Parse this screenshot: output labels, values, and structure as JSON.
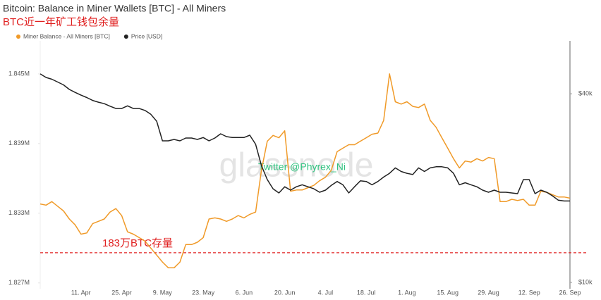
{
  "chart_data": {
    "type": "line",
    "title": "Bitcoin: Balance in Miner Wallets [BTC] - All Miners",
    "subtitle": "BTC近一年矿工钱包余量",
    "categories": [
      null,
      null,
      null,
      null,
      null,
      null,
      null,
      "11. Apr",
      null,
      null,
      null,
      null,
      null,
      null,
      "25. Apr",
      null,
      null,
      null,
      null,
      null,
      null,
      "9. May",
      null,
      null,
      null,
      null,
      null,
      null,
      "23. May",
      null,
      null,
      null,
      null,
      null,
      null,
      "6. Jun",
      null,
      null,
      null,
      null,
      null,
      null,
      "20. Jun",
      null,
      null,
      null,
      null,
      null,
      null,
      "4. Jul",
      null,
      null,
      null,
      null,
      null,
      null,
      "18. Jul",
      null,
      null,
      null,
      null,
      null,
      null,
      "1. Aug",
      null,
      null,
      null,
      null,
      null,
      null,
      "15. Aug",
      null,
      null,
      null,
      null,
      null,
      null,
      "29. Aug",
      null,
      null,
      null,
      null,
      null,
      null,
      "12. Sep",
      null,
      null,
      null,
      null,
      null,
      null,
      "26. Sep"
    ],
    "series": [
      {
        "name": "Miner Balance - All Miners [BTC]",
        "color": "#f09a28",
        "axis": "y",
        "values": [
          1833800,
          1833700,
          1834000,
          1833600,
          1833200,
          1832500,
          1832000,
          1831200,
          1831300,
          1832100,
          1832300,
          1832500,
          1833100,
          1833400,
          1832800,
          1831400,
          1831200,
          1830900,
          1830600,
          1830000,
          1829400,
          1828800,
          1828300,
          1828300,
          1828800,
          1830300,
          1830300,
          1830500,
          1830900,
          1832500,
          1832600,
          1832500,
          1832300,
          1832500,
          1832800,
          1832600,
          1832900,
          1833100,
          1836700,
          1839200,
          1839700,
          1839500,
          1840100,
          1834900,
          1835000,
          1835000,
          1835200,
          1835400,
          1835800,
          1836100,
          1836700,
          1838300,
          1838600,
          1838900,
          1838900,
          1839200,
          1839500,
          1839800,
          1839900,
          1841000,
          1845000,
          1842600,
          1842400,
          1842600,
          1842200,
          1842100,
          1842400,
          1841000,
          1840400,
          1839500,
          1838600,
          1837700,
          1836900,
          1837500,
          1837400,
          1837700,
          1837500,
          1837800,
          1837700,
          1834000,
          1834000,
          1834200,
          1834100,
          1834200,
          1833700,
          1833700,
          1834900,
          1834800,
          1834600,
          1834400,
          1834400,
          1834300
        ]
      },
      {
        "name": "Price [USD]",
        "color": "#222222",
        "axis": "y2",
        "values": [
          46300,
          45100,
          44500,
          43600,
          42700,
          41300,
          40400,
          39600,
          38900,
          38100,
          37600,
          37200,
          36500,
          35900,
          35900,
          36600,
          35900,
          35900,
          35400,
          34400,
          32700,
          28300,
          28300,
          28600,
          28300,
          28900,
          28900,
          28600,
          29000,
          28300,
          28900,
          29800,
          29200,
          29000,
          29000,
          29000,
          29500,
          27600,
          23600,
          21300,
          19900,
          19300,
          20200,
          19700,
          20200,
          20500,
          20200,
          19900,
          19400,
          19700,
          20400,
          21000,
          20500,
          19300,
          20200,
          21100,
          21000,
          20500,
          21000,
          21700,
          22300,
          23200,
          22600,
          22300,
          22100,
          23200,
          22600,
          23200,
          23400,
          23400,
          23200,
          22300,
          20500,
          20800,
          20500,
          20200,
          19700,
          19400,
          19700,
          19400,
          19400,
          19300,
          19200,
          21300,
          21300,
          19200,
          19700,
          19400,
          18900,
          18300,
          18200,
          18200
        ]
      }
    ],
    "ylim": [
      1826500,
      1847600
    ],
    "yticks": [
      {
        "value": 1827000,
        "label": "1.827M"
      },
      {
        "value": 1833000,
        "label": "1.833M"
      },
      {
        "value": 1839000,
        "label": "1.839M"
      },
      {
        "value": 1845000,
        "label": "1.845M"
      }
    ],
    "y2lim": [
      9550,
      57800
    ],
    "y2ticks": [
      {
        "value": 10000,
        "label": "$10k"
      },
      {
        "value": 40000,
        "label": "$40k"
      }
    ],
    "y2_log": true,
    "grid": false,
    "legend": "top-left",
    "reference_line": {
      "value": 1829600,
      "label": "183万BTC存量",
      "color": "#e02020"
    },
    "watermarks": [
      "glassnode",
      "Twitter @Phyrex_Ni"
    ]
  }
}
